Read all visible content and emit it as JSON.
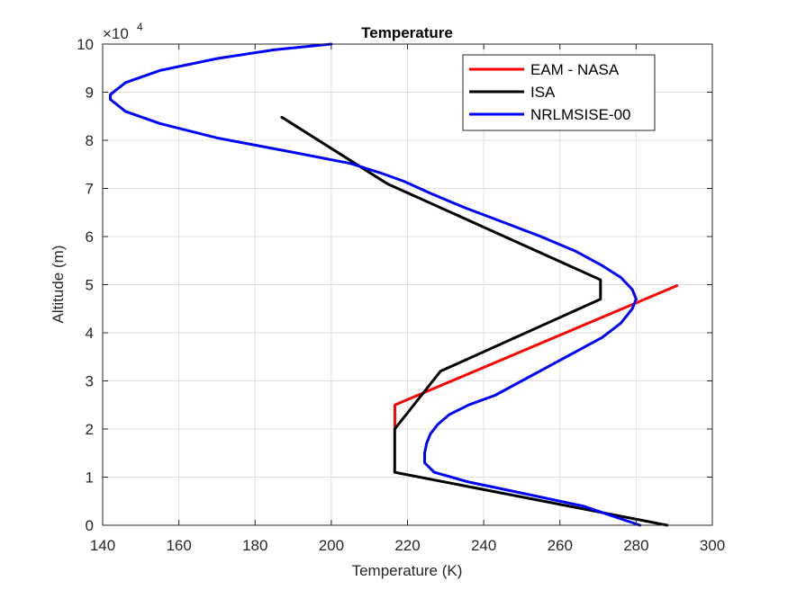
{
  "chart_data": {
    "type": "line",
    "title": "Temperature",
    "xlabel": "Temperature (K)",
    "ylabel": "Altitude (m)",
    "xlim": [
      140,
      300
    ],
    "ylim": [
      0,
      100000
    ],
    "xticks": [
      140,
      160,
      180,
      200,
      220,
      240,
      260,
      280,
      300
    ],
    "yticks": [
      0,
      10000,
      20000,
      30000,
      40000,
      50000,
      60000,
      70000,
      80000,
      90000,
      100000
    ],
    "ytick_labels": [
      "0",
      "1",
      "2",
      "3",
      "4",
      "5",
      "6",
      "7",
      "8",
      "9",
      "10"
    ],
    "y_multiplier": {
      "base": "×10",
      "exponent": "4"
    },
    "grid": true,
    "legend_position": "top-right",
    "series": [
      {
        "name": "EAM - NASA",
        "color": "#ff0000",
        "points": [
          [
            216.7,
            20000
          ],
          [
            216.7,
            25000
          ],
          [
            290.7,
            49800
          ]
        ]
      },
      {
        "name": "ISA",
        "color": "#000000",
        "points": [
          [
            288.15,
            0
          ],
          [
            216.65,
            11000
          ],
          [
            216.65,
            20000
          ],
          [
            228.65,
            32000
          ],
          [
            270.65,
            47000
          ],
          [
            270.65,
            51000
          ],
          [
            214.65,
            71000
          ],
          [
            187.0,
            84800
          ]
        ]
      },
      {
        "name": "NRLMSISE-00",
        "color": "#0000ff",
        "points": [
          [
            281,
            0
          ],
          [
            266,
            4000
          ],
          [
            248,
            7000
          ],
          [
            236,
            9000
          ],
          [
            227,
            11000
          ],
          [
            224.5,
            13000
          ],
          [
            224.5,
            15000
          ],
          [
            225,
            17000
          ],
          [
            226,
            19000
          ],
          [
            228,
            21000
          ],
          [
            231,
            23000
          ],
          [
            236,
            25000
          ],
          [
            243,
            27000
          ],
          [
            250,
            30000
          ],
          [
            257,
            33000
          ],
          [
            264,
            36000
          ],
          [
            271,
            39000
          ],
          [
            276,
            42000
          ],
          [
            279,
            45000
          ],
          [
            280,
            47000
          ],
          [
            279,
            49000
          ],
          [
            276,
            51500
          ],
          [
            271,
            54000
          ],
          [
            264,
            57000
          ],
          [
            255,
            60000
          ],
          [
            245,
            63000
          ],
          [
            235,
            66000
          ],
          [
            226,
            69000
          ],
          [
            219,
            71500
          ],
          [
            213,
            73200
          ],
          [
            205,
            75200
          ],
          [
            190,
            77500
          ],
          [
            170,
            80500
          ],
          [
            155,
            83500
          ],
          [
            146,
            86000
          ],
          [
            142,
            88500
          ],
          [
            142,
            89500
          ],
          [
            146,
            92000
          ],
          [
            155,
            94500
          ],
          [
            170,
            97000
          ],
          [
            185,
            98800
          ],
          [
            200,
            100000
          ]
        ]
      }
    ]
  }
}
